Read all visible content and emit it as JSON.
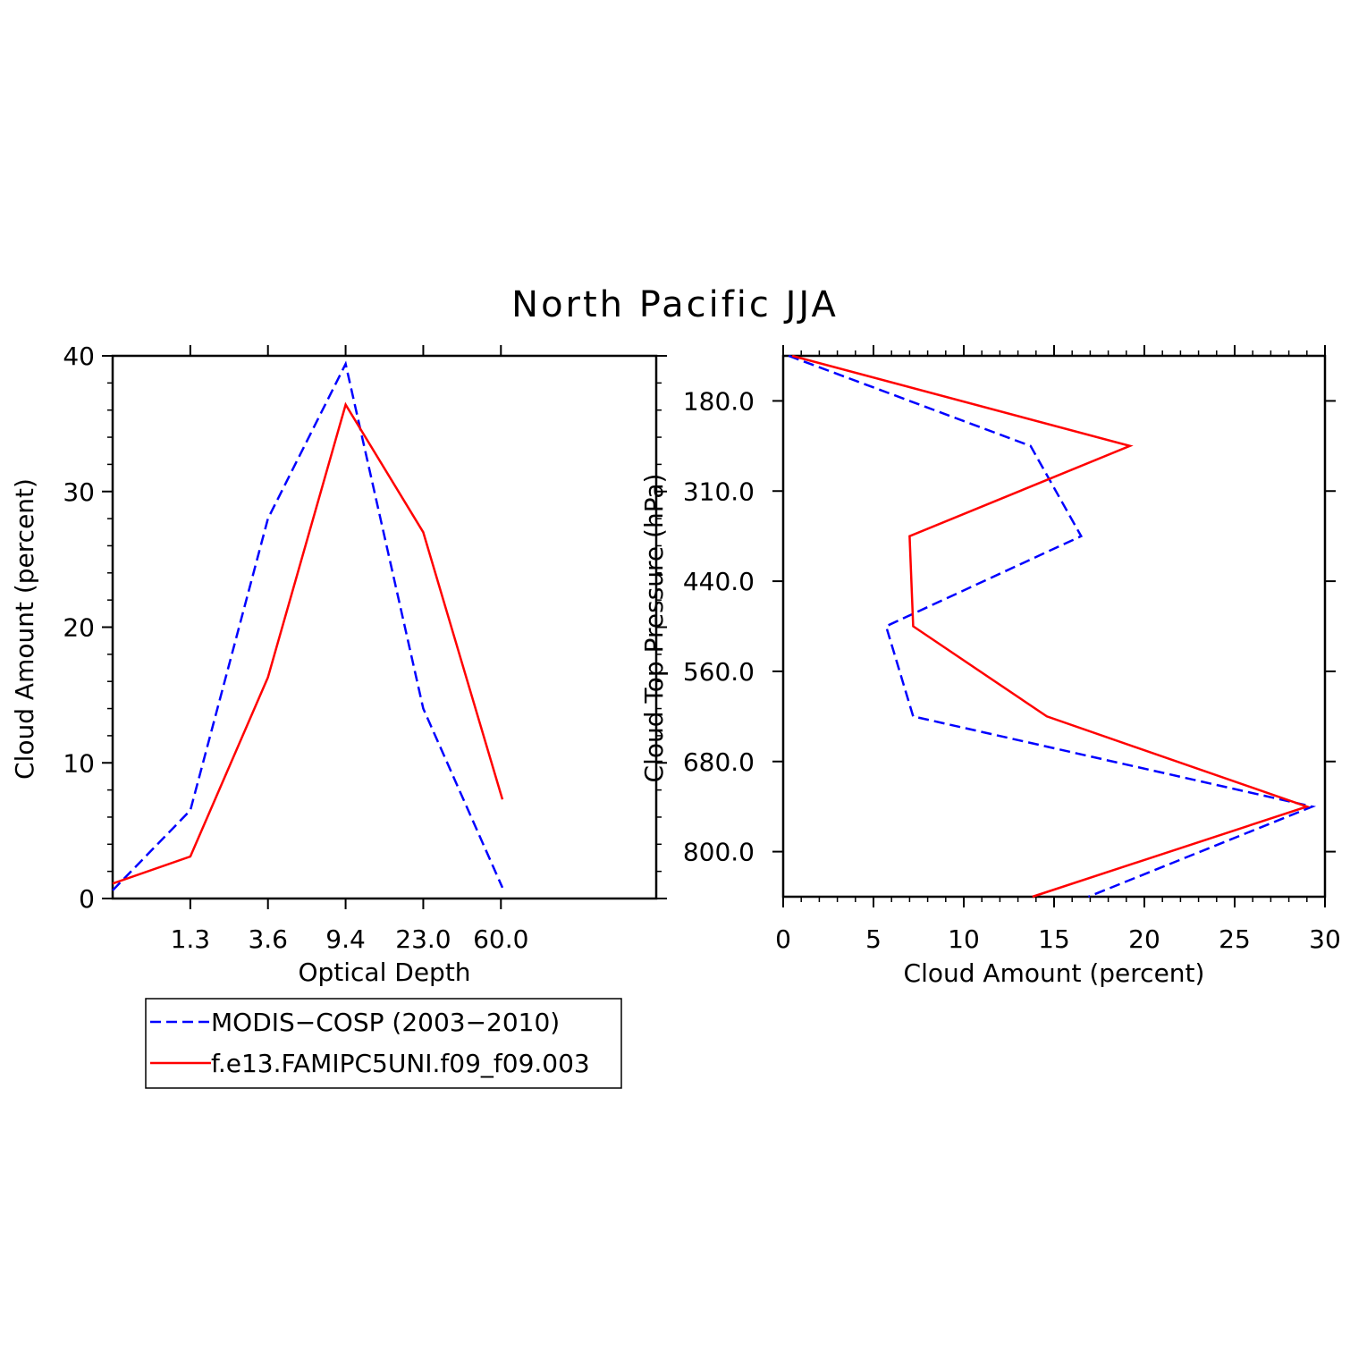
{
  "title": "North Pacific JJA",
  "colors": {
    "obs": "#0000ff",
    "model": "#ff0000",
    "axis": "#000000"
  },
  "legend": {
    "entries": [
      {
        "label": "MODIS−COSP (2003−2010)",
        "style": "dashed",
        "color": "#0000ff"
      },
      {
        "label": "f.e13.FAMIPC5UNI.f09_f09.003",
        "style": "solid",
        "color": "#ff0000"
      }
    ]
  },
  "chart_data": [
    {
      "type": "line",
      "xlabel": "Optical Depth",
      "ylabel": "Cloud Amount (percent)",
      "x_tick_labels": [
        "1.3",
        "3.6",
        "9.4",
        "23.0",
        "60.0"
      ],
      "y_ticks": [
        0,
        10,
        20,
        30,
        40
      ],
      "ylim": [
        0,
        40
      ],
      "x_bins": 7,
      "series": [
        {
          "name": "MODIS−COSP (2003−2010)",
          "values": [
            0.6,
            6.5,
            28.0,
            39.4,
            14.0,
            0.8
          ]
        },
        {
          "name": "f.e13.FAMIPC5UNI.f09_f09.003",
          "values": [
            1.1,
            3.1,
            16.3,
            36.4,
            27.0,
            7.3
          ]
        }
      ]
    },
    {
      "type": "line",
      "xlabel": "Cloud Amount (percent)",
      "ylabel": "Cloud Top Pressure (hPa)",
      "y_tick_labels": [
        "180.0",
        "310.0",
        "440.0",
        "560.0",
        "680.0",
        "800.0"
      ],
      "x_ticks": [
        0,
        5,
        10,
        15,
        20,
        25,
        30
      ],
      "xlim": [
        0,
        30
      ],
      "y_bins": 12,
      "series": [
        {
          "name": "MODIS−COSP (2003−2010)",
          "values": [
            0.3,
            13.7,
            16.5,
            5.7,
            7.2,
            29.3,
            16.9
          ]
        },
        {
          "name": "f.e13.FAMIPC5UNI.f09_f09.003",
          "values": [
            0.5,
            19.2,
            7.0,
            7.2,
            14.6,
            29.0,
            13.8
          ]
        }
      ]
    }
  ]
}
